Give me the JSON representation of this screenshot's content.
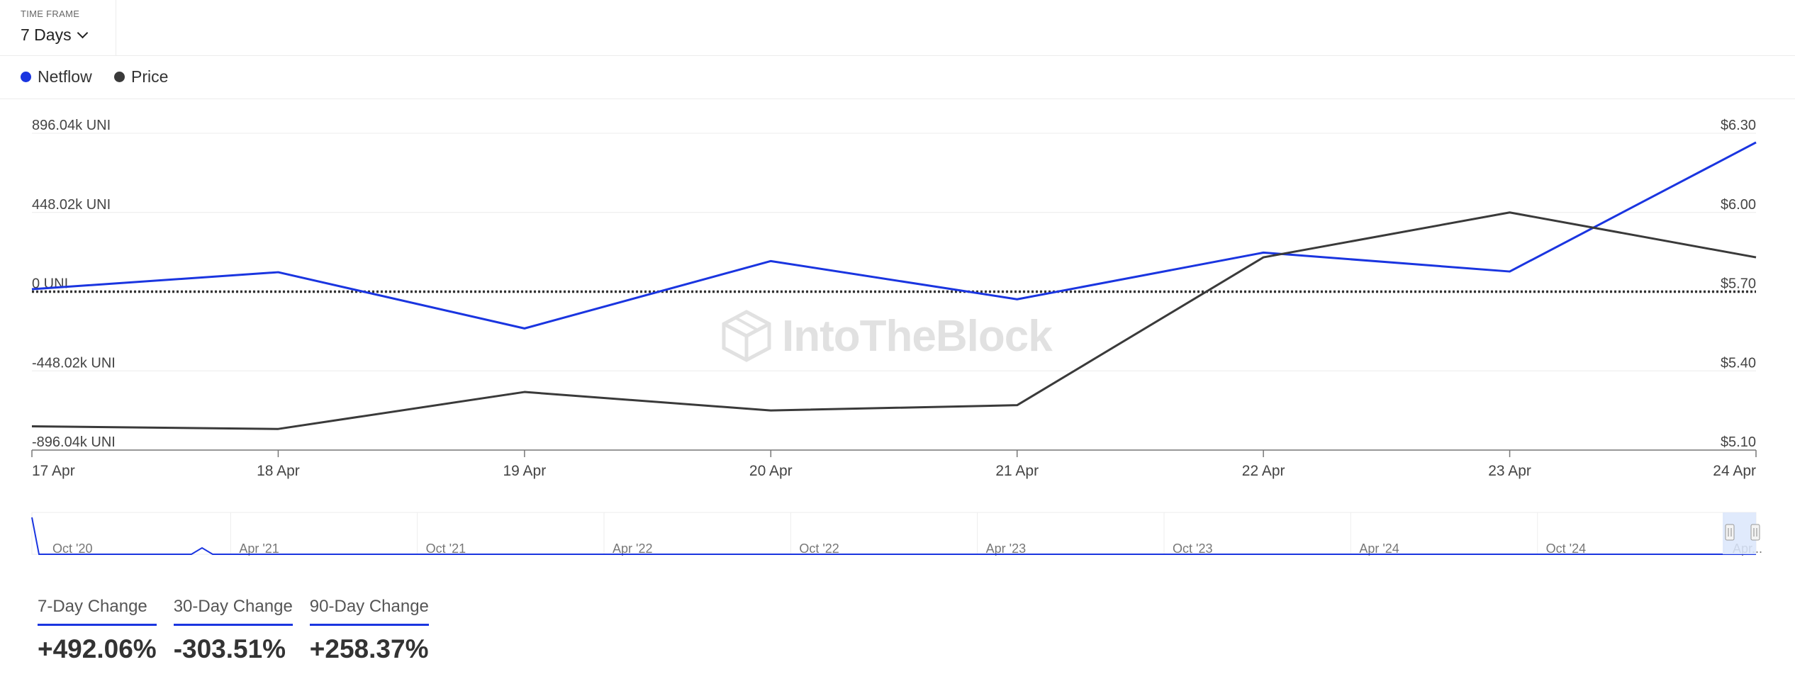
{
  "timeframe": {
    "label": "TIME FRAME",
    "value": "7 Days"
  },
  "legend": [
    {
      "name": "Netflow",
      "color": "#1a35e0"
    },
    {
      "name": "Price",
      "color": "#3a3a3a"
    }
  ],
  "watermark": "IntoTheBlock",
  "chart_data": {
    "type": "line",
    "categories": [
      "17 Apr",
      "18 Apr",
      "19 Apr",
      "20 Apr",
      "21 Apr",
      "22 Apr",
      "23 Apr",
      "24 Apr"
    ],
    "series": [
      {
        "name": "Netflow",
        "axis": "left",
        "color": "#1a35e0",
        "values": [
          14000,
          110000,
          -208000,
          173000,
          -43000,
          221000,
          114000,
          844000
        ]
      },
      {
        "name": "Price",
        "axis": "right",
        "color": "#3a3a3a",
        "values": [
          5.19,
          5.18,
          5.32,
          5.25,
          5.27,
          5.83,
          6.0,
          5.83
        ]
      }
    ],
    "y_left": {
      "ticks": [
        "896.04k UNI",
        "448.02k UNI",
        "0 UNI",
        "-448.02k UNI",
        "-896.04k UNI"
      ],
      "range": [
        -896040,
        896040
      ]
    },
    "y_right": {
      "ticks": [
        "$6.30",
        "$6.00",
        "$5.70",
        "$5.40",
        "$5.10"
      ],
      "range": [
        5.1,
        6.3
      ]
    },
    "zero_line": "dotted",
    "grid": true,
    "navigator": {
      "labels": [
        "Oct '20",
        "Apr '21",
        "Oct '21",
        "Apr '22",
        "Oct '22",
        "Apr '23",
        "Oct '23",
        "Apr '24",
        "Oct '24",
        "Apr..."
      ]
    }
  },
  "stats": [
    {
      "label": "7-Day Change",
      "value": "+492.06%"
    },
    {
      "label": "30-Day Change",
      "value": "-303.51%"
    },
    {
      "label": "90-Day Change",
      "value": "+258.37%"
    }
  ]
}
